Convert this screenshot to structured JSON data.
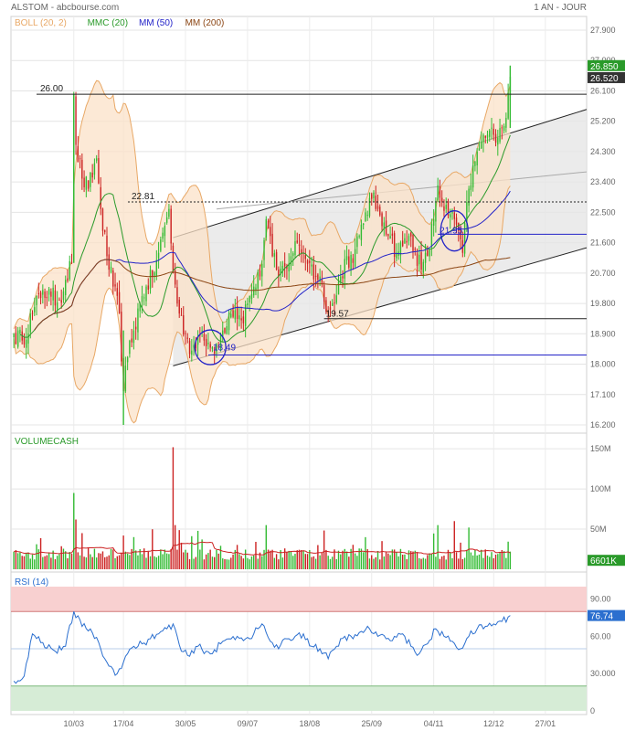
{
  "header": {
    "title": "ALSTOM - abcbourse.com",
    "period": "1 AN - JOUR"
  },
  "colors": {
    "boll": "#e8a866",
    "boll_fill": "#fbe2c8",
    "mmc20": "#2a9a2a",
    "mm50": "#2323c8",
    "mm200": "#8b4513",
    "up": "#33bb33",
    "down": "#cc2222",
    "rsi": "#2b6fcf",
    "rsi_hi": "#f8d0d0",
    "rsi_lo": "#d6ecd6",
    "tag_dark": "#333333",
    "tag_green": "#2a9a2a",
    "grid": "#e4e4e4"
  },
  "chart_data": [
    {
      "type": "candlestick",
      "panel": "price",
      "legend": [
        {
          "label": "BOLL (20, 2)",
          "color": "#e8a866"
        },
        {
          "label": "MMC (20)",
          "color": "#2a9a2a"
        },
        {
          "label": "MM (50)",
          "color": "#2323c8"
        },
        {
          "label": "MM (200)",
          "color": "#8b4513"
        }
      ],
      "yticks": [
        "27.900",
        "27.000",
        "26.100",
        "25.200",
        "24.300",
        "23.400",
        "22.500",
        "21.600",
        "20.700",
        "19.800",
        "18.900",
        "18.000",
        "17.100",
        "16.200"
      ],
      "ylim": [
        16.2,
        27.9
      ],
      "xticks": [
        "10/03",
        "17/04",
        "30/05",
        "09/07",
        "18/08",
        "25/09",
        "04/11",
        "12/12",
        "27/01"
      ],
      "n_sessions": 258,
      "price_anchors": [
        [
          0,
          18.9
        ],
        [
          4,
          18.7
        ],
        [
          9,
          19.5
        ],
        [
          14,
          20.2
        ],
        [
          18,
          20.0
        ],
        [
          22,
          19.9
        ],
        [
          25,
          20.5
        ],
        [
          28,
          21.0
        ],
        [
          29,
          26.0
        ],
        [
          30,
          24.5
        ],
        [
          33,
          23.5
        ],
        [
          36,
          23.2
        ],
        [
          40,
          24.1
        ],
        [
          42,
          22.6
        ],
        [
          45,
          21.2
        ],
        [
          48,
          20.3
        ],
        [
          51,
          19.5
        ],
        [
          53,
          17.2
        ],
        [
          55,
          18.2
        ],
        [
          58,
          19.0
        ],
        [
          61,
          19.8
        ],
        [
          64,
          20.3
        ],
        [
          67,
          20.6
        ],
        [
          70,
          21.3
        ],
        [
          73,
          22.1
        ],
        [
          75,
          22.6
        ],
        [
          77,
          20.7
        ],
        [
          80,
          19.5
        ],
        [
          83,
          18.9
        ],
        [
          86,
          18.4
        ],
        [
          89,
          18.8
        ],
        [
          92,
          18.7
        ],
        [
          95,
          18.49
        ],
        [
          98,
          18.6
        ],
        [
          101,
          19.0
        ],
        [
          104,
          19.5
        ],
        [
          107,
          19.6
        ],
        [
          110,
          19.3
        ],
        [
          113,
          19.8
        ],
        [
          116,
          20.3
        ],
        [
          119,
          20.6
        ],
        [
          122,
          22.3
        ],
        [
          125,
          21.2
        ],
        [
          128,
          20.6
        ],
        [
          131,
          20.9
        ],
        [
          134,
          21.2
        ],
        [
          137,
          21.6
        ],
        [
          140,
          21.3
        ],
        [
          143,
          21.0
        ],
        [
          146,
          20.6
        ],
        [
          149,
          20.4
        ],
        [
          152,
          19.57
        ],
        [
          155,
          19.8
        ],
        [
          158,
          20.6
        ],
        [
          161,
          21.2
        ],
        [
          164,
          21.0
        ],
        [
          167,
          21.8
        ],
        [
          170,
          22.5
        ],
        [
          173,
          22.9
        ],
        [
          176,
          22.6
        ],
        [
          179,
          22.2
        ],
        [
          182,
          21.8
        ],
        [
          185,
          21.3
        ],
        [
          188,
          21.5
        ],
        [
          191,
          21.8
        ],
        [
          194,
          21.4
        ],
        [
          197,
          20.8
        ],
        [
          200,
          21.2
        ],
        [
          203,
          22.3
        ],
        [
          205,
          23.3
        ],
        [
          207,
          22.8
        ],
        [
          210,
          22.4
        ],
        [
          213,
          22.3
        ],
        [
          215,
          21.95
        ],
        [
          217,
          21.3
        ],
        [
          220,
          23.2
        ],
        [
          223,
          24.0
        ],
        [
          226,
          24.6
        ],
        [
          229,
          24.8
        ],
        [
          232,
          24.8
        ],
        [
          235,
          25.0
        ],
        [
          238,
          25.3
        ],
        [
          240,
          26.52
        ]
      ],
      "last_price": "26.850",
      "last_close_tag": "26.520",
      "annotations": [
        {
          "label": "26.00",
          "value": 26.0
        },
        {
          "label": "22.81",
          "value": 22.81
        },
        {
          "label": "19.57",
          "value": 19.57
        },
        {
          "label": "18.49",
          "value": 18.49
        },
        {
          "label": "21.95",
          "value": 21.95
        }
      ]
    },
    {
      "type": "bar",
      "panel": "volume",
      "title": "VOLUMECASH",
      "yticks": [
        "150M",
        "100M",
        "50M"
      ],
      "ylim": [
        0,
        165
      ],
      "unit": "M",
      "last_value_tag": "6601K",
      "baseline": 12,
      "spikes": [
        [
          29,
          95
        ],
        [
          30,
          62
        ],
        [
          33,
          45
        ],
        [
          53,
          42
        ],
        [
          77,
          152
        ],
        [
          78,
          55
        ],
        [
          122,
          55
        ],
        [
          170,
          40
        ],
        [
          205,
          55
        ],
        [
          213,
          60
        ],
        [
          220,
          52
        ],
        [
          240,
          22
        ]
      ]
    },
    {
      "type": "line",
      "panel": "rsi",
      "title": "RSI (14)",
      "yticks": [
        "90.00",
        "60.00",
        "30.000",
        "0"
      ],
      "ylim": [
        0,
        100
      ],
      "zones": {
        "high": [
          80,
          100
        ],
        "low": [
          0,
          20
        ],
        "mid": 50
      },
      "last_value_tag": "76.74",
      "anchors": [
        [
          0,
          24
        ],
        [
          5,
          28
        ],
        [
          9,
          62
        ],
        [
          14,
          55
        ],
        [
          20,
          48
        ],
        [
          25,
          52
        ],
        [
          29,
          80
        ],
        [
          33,
          68
        ],
        [
          37,
          66
        ],
        [
          42,
          50
        ],
        [
          46,
          36
        ],
        [
          50,
          30
        ],
        [
          54,
          44
        ],
        [
          58,
          52
        ],
        [
          62,
          54
        ],
        [
          66,
          58
        ],
        [
          70,
          62
        ],
        [
          74,
          66
        ],
        [
          77,
          70
        ],
        [
          81,
          48
        ],
        [
          85,
          44
        ],
        [
          89,
          52
        ],
        [
          93,
          48
        ],
        [
          96,
          46
        ],
        [
          100,
          54
        ],
        [
          104,
          58
        ],
        [
          108,
          60
        ],
        [
          112,
          58
        ],
        [
          116,
          62
        ],
        [
          120,
          70
        ],
        [
          124,
          56
        ],
        [
          128,
          50
        ],
        [
          132,
          58
        ],
        [
          136,
          60
        ],
        [
          140,
          62
        ],
        [
          144,
          52
        ],
        [
          148,
          50
        ],
        [
          152,
          42
        ],
        [
          156,
          52
        ],
        [
          160,
          60
        ],
        [
          164,
          58
        ],
        [
          168,
          64
        ],
        [
          172,
          66
        ],
        [
          176,
          60
        ],
        [
          180,
          58
        ],
        [
          184,
          60
        ],
        [
          188,
          62
        ],
        [
          192,
          52
        ],
        [
          196,
          46
        ],
        [
          200,
          54
        ],
        [
          204,
          66
        ],
        [
          208,
          60
        ],
        [
          212,
          56
        ],
        [
          216,
          50
        ],
        [
          220,
          60
        ],
        [
          224,
          66
        ],
        [
          228,
          68
        ],
        [
          232,
          70
        ],
        [
          236,
          72
        ],
        [
          240,
          76.74
        ]
      ]
    }
  ]
}
